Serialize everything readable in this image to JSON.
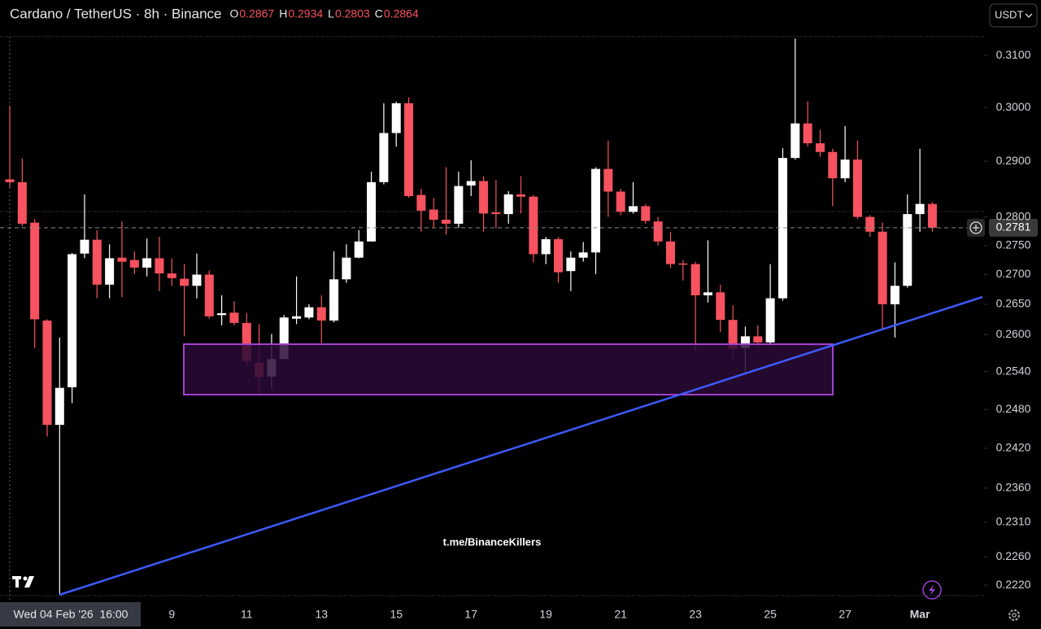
{
  "chart_data": {
    "type": "candlestick",
    "title": "Cardano / TetherUS · 8h · Binance",
    "ohlc_legend": [
      {
        "label": "O",
        "value": 0.2867
      },
      {
        "label": "H",
        "value": 0.2934
      },
      {
        "label": "L",
        "value": 0.2803
      },
      {
        "label": "C",
        "value": 0.2864
      }
    ],
    "currency": "USDT",
    "watermark": "t.me/BinanceKillers",
    "last_price": 0.2781,
    "up_color": "#ffffff",
    "down_color": "#f7525f",
    "log_scale": true,
    "grid": false,
    "ylim": [
      0.2202,
      0.3137
    ],
    "yticks": [
      {
        "value": 0.31,
        "label": "0.3100"
      },
      {
        "value": 0.3,
        "label": "0.3000"
      },
      {
        "value": 0.29,
        "label": "0.2900"
      },
      {
        "value": 0.28,
        "label": "0.2800"
      },
      {
        "value": 0.275,
        "label": "0.2750"
      },
      {
        "value": 0.27,
        "label": "0.2700"
      },
      {
        "value": 0.265,
        "label": "0.2650"
      },
      {
        "value": 0.26,
        "label": "0.2600"
      },
      {
        "value": 0.254,
        "label": "0.2540"
      },
      {
        "value": 0.248,
        "label": "0.2480"
      },
      {
        "value": 0.242,
        "label": "0.2420"
      },
      {
        "value": 0.236,
        "label": "0.2360"
      },
      {
        "value": 0.231,
        "label": "0.2310"
      },
      {
        "value": 0.226,
        "label": "0.2260"
      },
      {
        "value": 0.222,
        "label": "0.2220"
      }
    ],
    "categories": [
      "Wed 04 Feb '26  16:00",
      null,
      null,
      null,
      null,
      null,
      null,
      null,
      null,
      null,
      null,
      null,
      null,
      "9",
      null,
      null,
      null,
      null,
      null,
      "11",
      null,
      null,
      null,
      null,
      null,
      "13",
      null,
      null,
      null,
      null,
      null,
      "15",
      null,
      null,
      null,
      null,
      null,
      "17",
      null,
      null,
      null,
      null,
      null,
      "19",
      null,
      null,
      null,
      null,
      null,
      "21",
      null,
      null,
      null,
      null,
      null,
      "23",
      null,
      null,
      null,
      null,
      null,
      "25",
      null,
      null,
      null,
      null,
      null,
      "27",
      null,
      null,
      null,
      null,
      null,
      "Mar",
      null
    ],
    "open": [
      0.2867,
      0.2862,
      0.279,
      0.2623,
      0.2456,
      0.2515,
      0.2736,
      0.276,
      0.2683,
      0.2729,
      0.2725,
      0.2712,
      0.2728,
      0.2702,
      0.2693,
      0.2681,
      0.27,
      0.2632,
      0.2636,
      0.2619,
      0.2554,
      0.2532,
      0.256,
      0.2626,
      0.2628,
      0.2645,
      0.2623,
      0.2692,
      0.2729,
      0.2757,
      0.2862,
      0.2952,
      0.3008,
      0.2839,
      0.2813,
      0.2795,
      0.2788,
      0.2856,
      0.2864,
      0.2808,
      0.2805,
      0.284,
      0.2836,
      0.2735,
      0.2761,
      0.2706,
      0.2729,
      0.2738,
      0.2886,
      0.2845,
      0.2809,
      0.2819,
      0.2792,
      0.2757,
      0.2719,
      0.2718,
      0.2665,
      0.267,
      0.2624,
      0.2578,
      0.2597,
      0.2587,
      0.266,
      0.2906,
      0.297,
      0.2933,
      0.2917,
      0.2869,
      0.2903,
      0.28,
      0.2774,
      0.265,
      0.2681,
      0.2805,
      0.2823
    ],
    "high": [
      0.3003,
      0.2905,
      0.2796,
      0.2625,
      0.2595,
      0.2737,
      0.284,
      0.2777,
      0.2752,
      0.2792,
      0.274,
      0.2762,
      0.2765,
      0.2728,
      0.2718,
      0.2736,
      0.2707,
      0.2665,
      0.2655,
      0.2635,
      0.2617,
      0.2601,
      0.2632,
      0.2697,
      0.265,
      0.2665,
      0.274,
      0.2752,
      0.2777,
      0.2881,
      0.3008,
      0.3011,
      0.3019,
      0.285,
      0.2834,
      0.2889,
      0.2881,
      0.2902,
      0.2873,
      0.2866,
      0.2846,
      0.2873,
      0.2839,
      0.2765,
      0.2765,
      0.274,
      0.2756,
      0.2889,
      0.2938,
      0.285,
      0.2862,
      0.2823,
      0.28,
      0.2774,
      0.2725,
      0.2722,
      0.2759,
      0.2683,
      0.2648,
      0.2613,
      0.2615,
      0.2718,
      0.2924,
      0.3133,
      0.3011,
      0.2958,
      0.2923,
      0.2965,
      0.2938,
      0.2803,
      0.279,
      0.2721,
      0.284,
      0.2923,
      0.2826
    ],
    "low": [
      0.2853,
      0.2784,
      0.2578,
      0.2438,
      0.2208,
      0.249,
      0.2728,
      0.266,
      0.266,
      0.2662,
      0.2701,
      0.2697,
      0.2672,
      0.2681,
      0.2597,
      0.266,
      0.2626,
      0.2615,
      0.2615,
      0.2547,
      0.2504,
      0.2513,
      0.256,
      0.2617,
      0.2625,
      0.2586,
      0.262,
      0.2686,
      0.2728,
      0.2757,
      0.2858,
      0.2927,
      0.2834,
      0.2774,
      0.278,
      0.2769,
      0.2781,
      0.2837,
      0.2774,
      0.278,
      0.2788,
      0.2806,
      0.2721,
      0.2718,
      0.2686,
      0.2672,
      0.2722,
      0.2701,
      0.28,
      0.2803,
      0.2806,
      0.2788,
      0.275,
      0.2711,
      0.269,
      0.2573,
      0.2653,
      0.2604,
      0.2561,
      0.2536,
      0.2578,
      0.2584,
      0.2656,
      0.2903,
      0.2927,
      0.2908,
      0.2819,
      0.2862,
      0.2796,
      0.2765,
      0.2609,
      0.2595,
      0.2678,
      0.2774,
      0.2774
    ],
    "close": [
      0.2862,
      0.2788,
      0.2625,
      0.2456,
      0.2514,
      0.2735,
      0.276,
      0.2683,
      0.2728,
      0.2722,
      0.2712,
      0.2728,
      0.2702,
      0.2694,
      0.2681,
      0.27,
      0.263,
      0.2635,
      0.2619,
      0.2557,
      0.2531,
      0.256,
      0.2628,
      0.263,
      0.2645,
      0.2623,
      0.2692,
      0.2729,
      0.2757,
      0.2862,
      0.2952,
      0.3008,
      0.2837,
      0.2811,
      0.2795,
      0.2788,
      0.2855,
      0.2864,
      0.2806,
      0.2805,
      0.284,
      0.2836,
      0.2735,
      0.2761,
      0.2704,
      0.2729,
      0.2738,
      0.2886,
      0.2845,
      0.2809,
      0.2819,
      0.2793,
      0.2757,
      0.2718,
      0.2717,
      0.2665,
      0.267,
      0.2624,
      0.2577,
      0.2597,
      0.2587,
      0.266,
      0.2906,
      0.297,
      0.2933,
      0.2917,
      0.2869,
      0.2903,
      0.28,
      0.2774,
      0.265,
      0.2681,
      0.2805,
      0.2823,
      0.2781
    ]
  }
}
